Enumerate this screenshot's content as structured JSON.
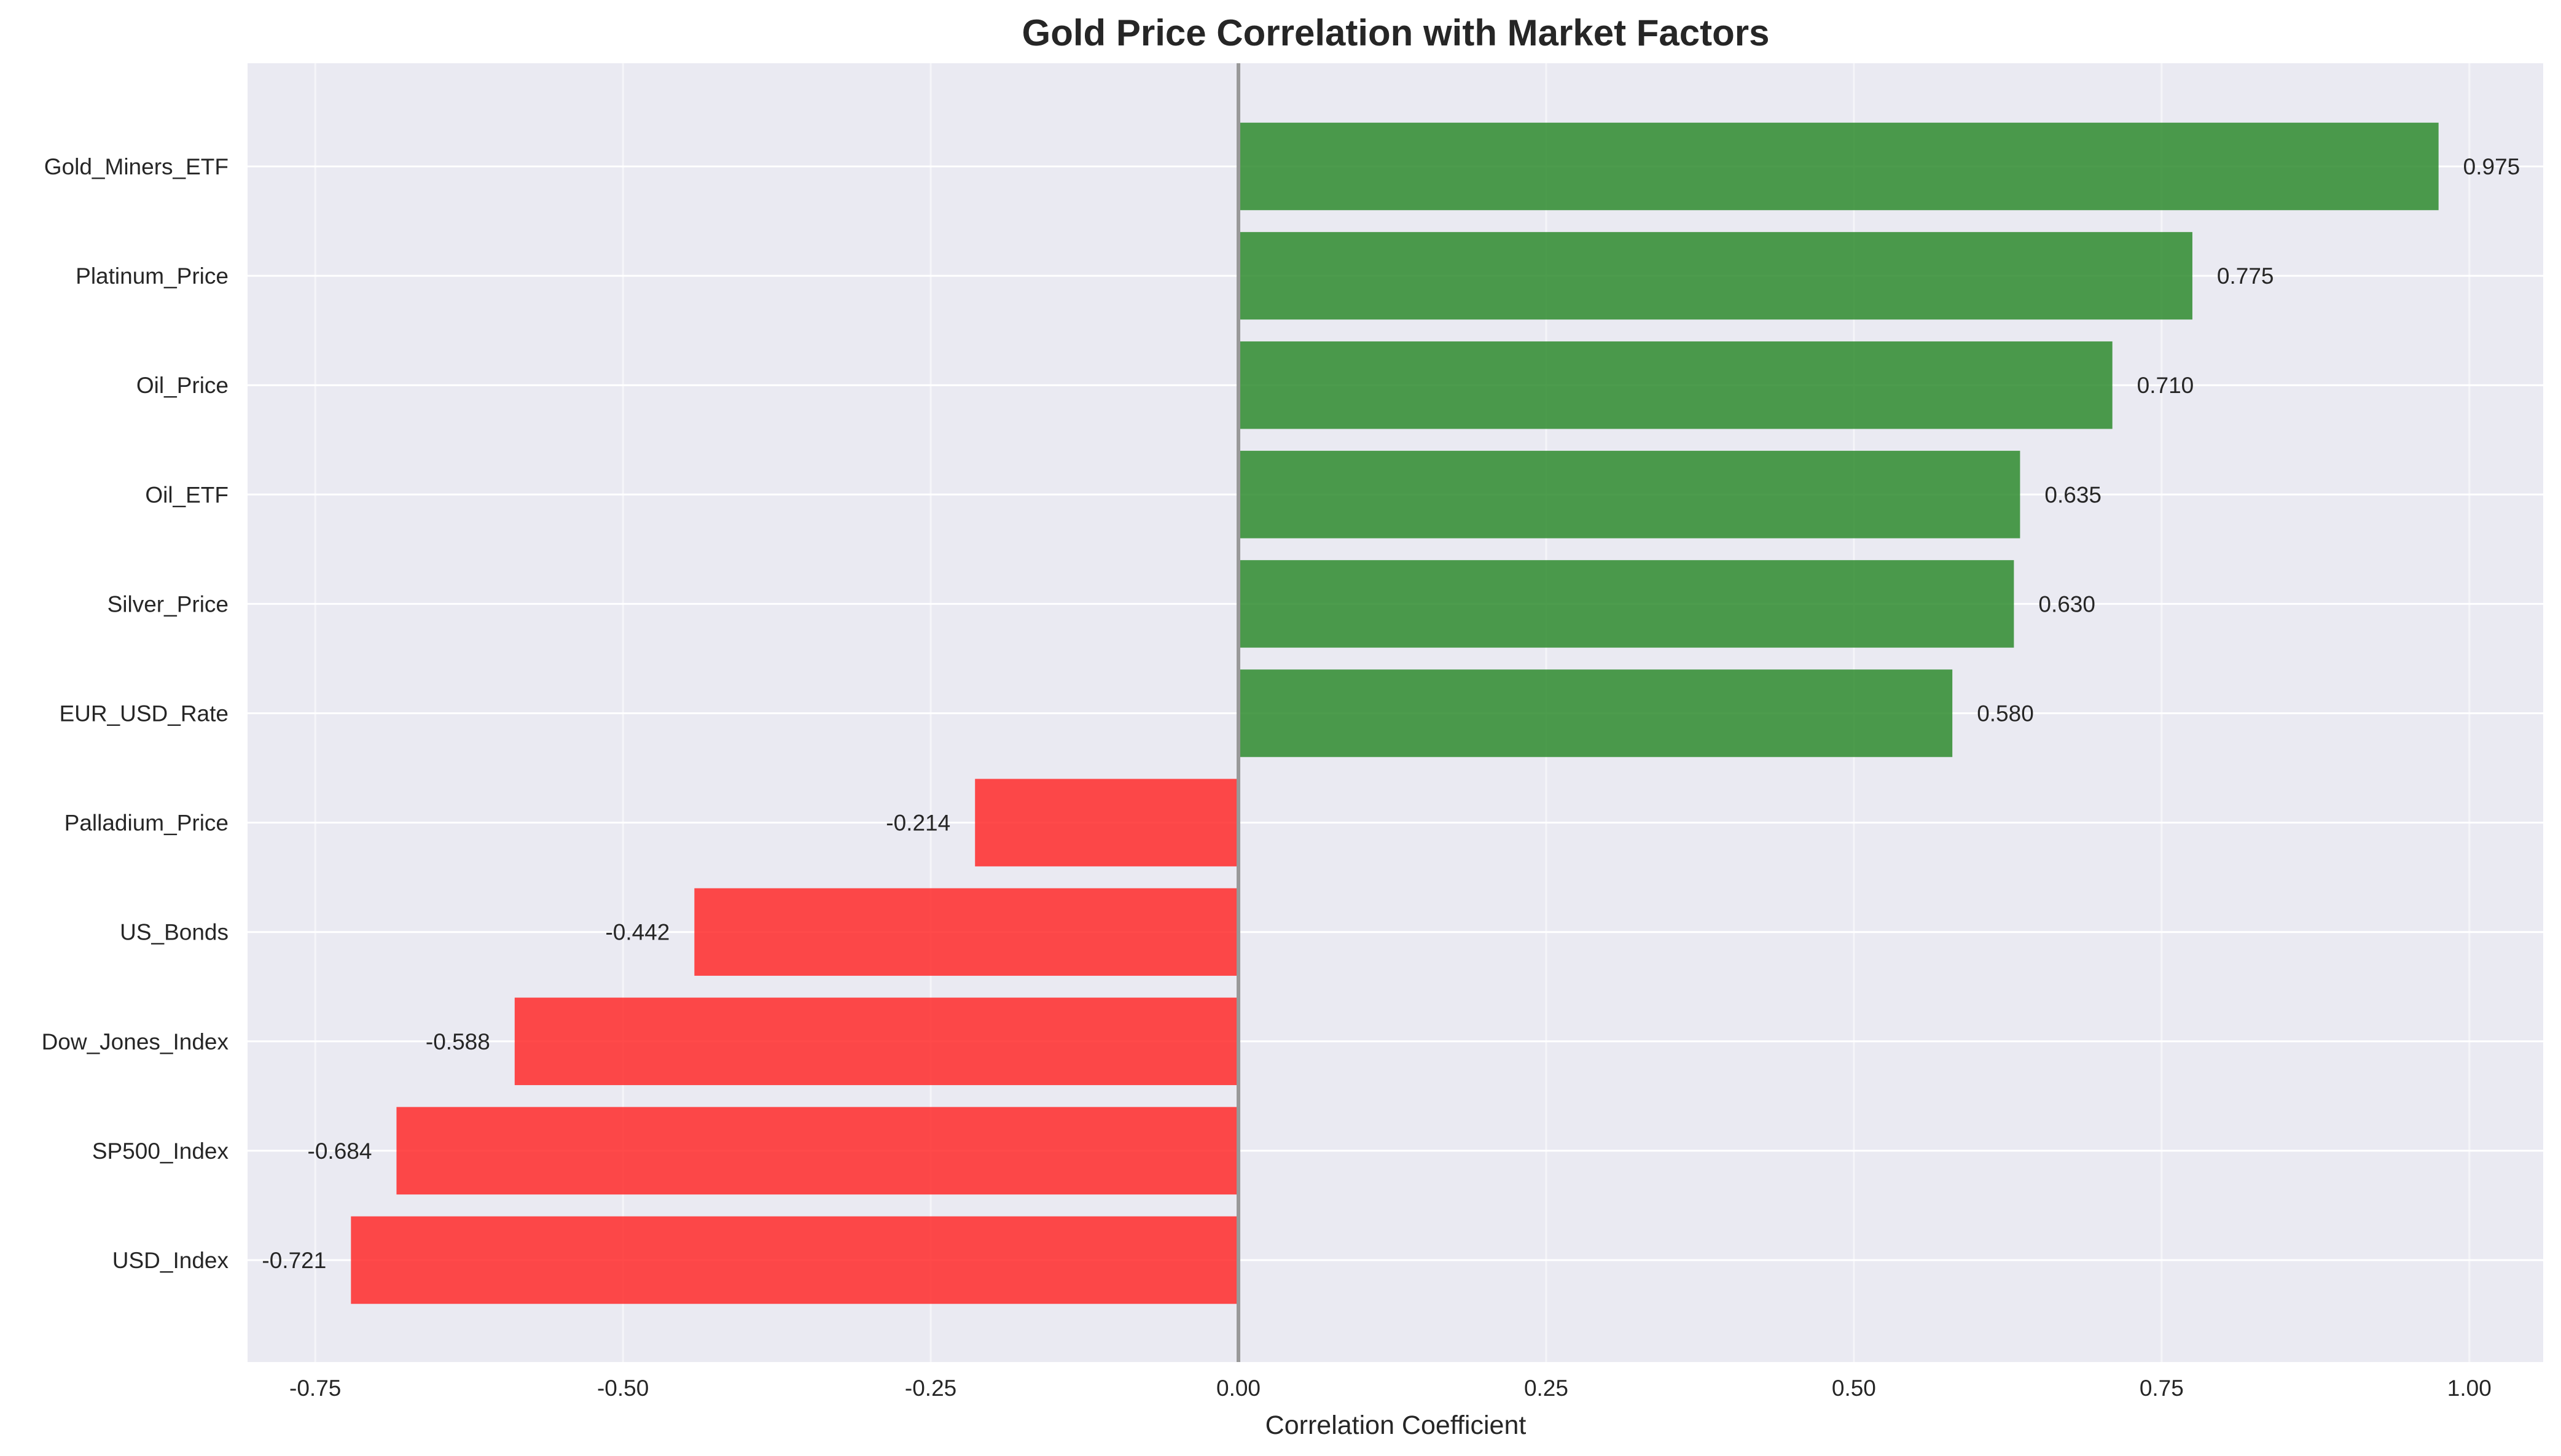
{
  "chart_data": {
    "type": "bar",
    "orientation": "horizontal",
    "title": "Gold Price Correlation with Market Factors",
    "xlabel": "Correlation Coefficient",
    "ylabel": "",
    "categories": [
      "USD_Index",
      "SP500_Index",
      "Dow_Jones_Index",
      "US_Bonds",
      "Palladium_Price",
      "EUR_USD_Rate",
      "Silver_Price",
      "Oil_ETF",
      "Oil_Price",
      "Platinum_Price",
      "Gold_Miners_ETF"
    ],
    "values": [
      -0.721,
      -0.684,
      -0.588,
      -0.442,
      -0.214,
      0.58,
      0.63,
      0.635,
      0.71,
      0.775,
      0.975
    ],
    "value_labels": [
      "-0.721",
      "-0.684",
      "-0.588",
      "-0.442",
      "-0.214",
      "0.580",
      "0.630",
      "0.635",
      "0.710",
      "0.775",
      "0.975"
    ],
    "xlim": [
      -0.805,
      1.06
    ],
    "xticks": [
      -0.75,
      -0.5,
      -0.25,
      0.0,
      0.25,
      0.5,
      0.75,
      1.0
    ],
    "xtick_labels": [
      "-0.75",
      "-0.50",
      "-0.25",
      "0.00",
      "0.25",
      "0.50",
      "0.75",
      "1.00"
    ],
    "grid": true,
    "legend": "none",
    "colors": {
      "positive": "#2e8b2e",
      "negative": "#ff2a2a",
      "background": "#eaeaf2",
      "grid": "#ffffff",
      "zero_line": "#999999",
      "text": "#262626"
    }
  }
}
